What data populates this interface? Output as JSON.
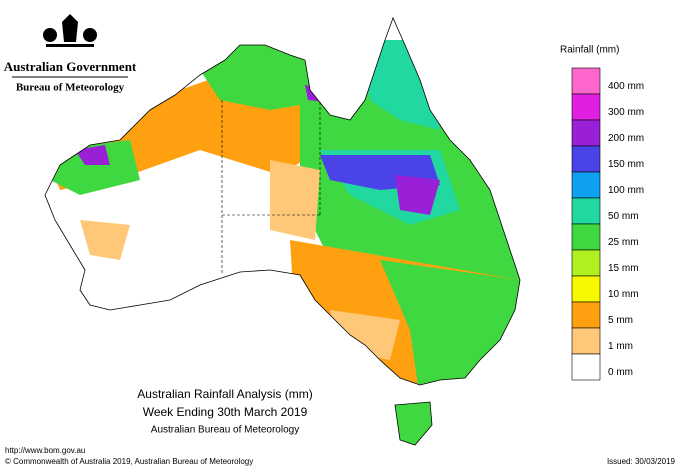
{
  "header": {
    "government": "Australian Government",
    "agency": "Bureau of Meteorology"
  },
  "legend": {
    "title": "Rainfall (mm)",
    "items": [
      {
        "label": "400 mm",
        "color": "#ff66cc"
      },
      {
        "label": "300 mm",
        "color": "#e020e0"
      },
      {
        "label": "200 mm",
        "color": "#9a20d8"
      },
      {
        "label": "150 mm",
        "color": "#4a44e8"
      },
      {
        "label": "100 mm",
        "color": "#10a0f0"
      },
      {
        "label": "50 mm",
        "color": "#20d8a0"
      },
      {
        "label": "25 mm",
        "color": "#40d840"
      },
      {
        "label": "15 mm",
        "color": "#b0f020"
      },
      {
        "label": "10 mm",
        "color": "#f8f800"
      },
      {
        "label": "5 mm",
        "color": "#ffa010"
      },
      {
        "label": "1 mm",
        "color": "#ffc878"
      },
      {
        "label": "0 mm",
        "color": "#ffffff"
      }
    ]
  },
  "title": {
    "line1": "Australian Rainfall Analysis (mm)",
    "line2": "Week Ending 30th March 2019",
    "line3": "Australian Bureau of Meteorology"
  },
  "footer": {
    "url": "http://www.bom.gov.au",
    "copyright": "© Commonwealth of Australia 2019, Australian Bureau of Meteorology",
    "issued": "Issued: 30/03/2019"
  }
}
